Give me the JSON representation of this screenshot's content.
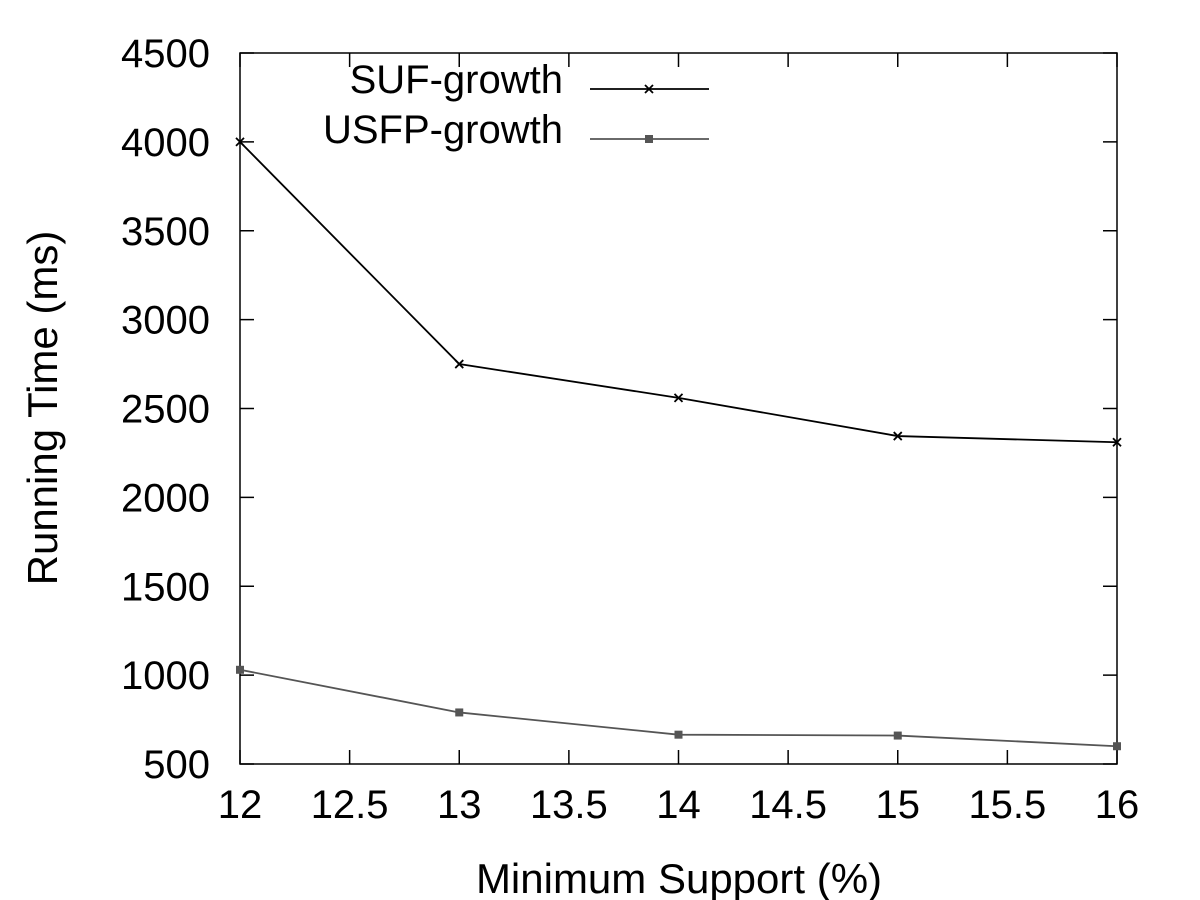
{
  "chart_data": {
    "type": "line",
    "xlabel": "Minimum Support (%)",
    "ylabel": "Running Time (ms)",
    "xlim": [
      12,
      16
    ],
    "ylim": [
      500,
      4500
    ],
    "xticks": [
      12,
      12.5,
      13,
      13.5,
      14,
      14.5,
      15,
      15.5,
      16
    ],
    "yticks": [
      500,
      1000,
      1500,
      2000,
      2500,
      3000,
      3500,
      4000,
      4500
    ],
    "grid": false,
    "legend_position": "top-center",
    "series": [
      {
        "name": "SUF-growth",
        "color": "#000000",
        "marker": "x",
        "x": [
          12,
          13,
          14,
          15,
          16
        ],
        "y": [
          4000,
          2750,
          2560,
          2345,
          2310
        ]
      },
      {
        "name": "USFP-growth",
        "color": "#555555",
        "marker": "square",
        "x": [
          12,
          13,
          14,
          15,
          16
        ],
        "y": [
          1030,
          790,
          665,
          660,
          600
        ]
      }
    ]
  }
}
